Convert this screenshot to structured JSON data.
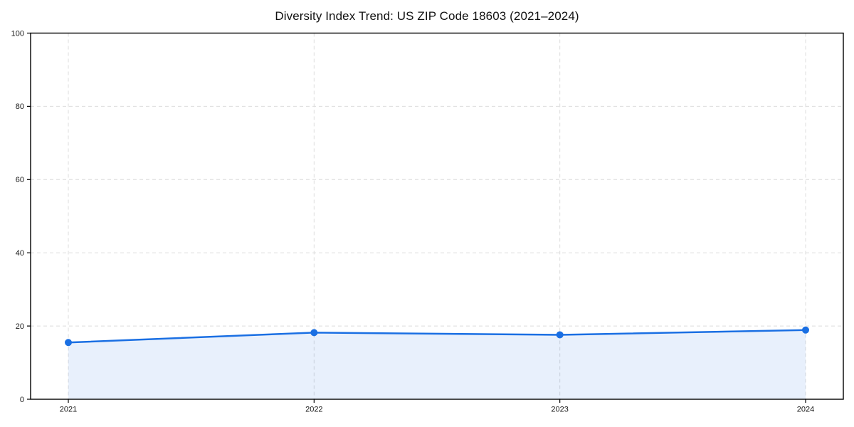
{
  "page": {
    "background": "#ffffff"
  },
  "chart_data": {
    "type": "line",
    "title": "Diversity Index Trend: US ZIP Code 18603 (2021–2024)",
    "xlabel": "",
    "ylabel": "",
    "x": [
      2021,
      2022,
      2023,
      2024
    ],
    "x_tick_labels": [
      "2021",
      "2022",
      "2023",
      "2024"
    ],
    "series": [
      {
        "name": "Diversity Index",
        "values": [
          15.5,
          18.2,
          17.6,
          18.9
        ]
      }
    ],
    "ylim": [
      0,
      100
    ],
    "yticks": [
      0,
      20,
      40,
      60,
      80,
      100
    ],
    "y_tick_labels": [
      "0",
      "20",
      "40",
      "60",
      "80",
      "100"
    ],
    "grid": "dashed",
    "legend_position": "none",
    "area_fill_under_line": true,
    "markers": "circle",
    "colors": {
      "line": "#1a6fe3",
      "marker": "#1a6fe3",
      "area": "#1a6fe3",
      "area_opacity": 0.1,
      "grid": "#dcdcdc",
      "axis_border": "#000000",
      "tick_text": "#1a1a1a",
      "title_text": "#111111",
      "background": "#ffffff"
    }
  }
}
